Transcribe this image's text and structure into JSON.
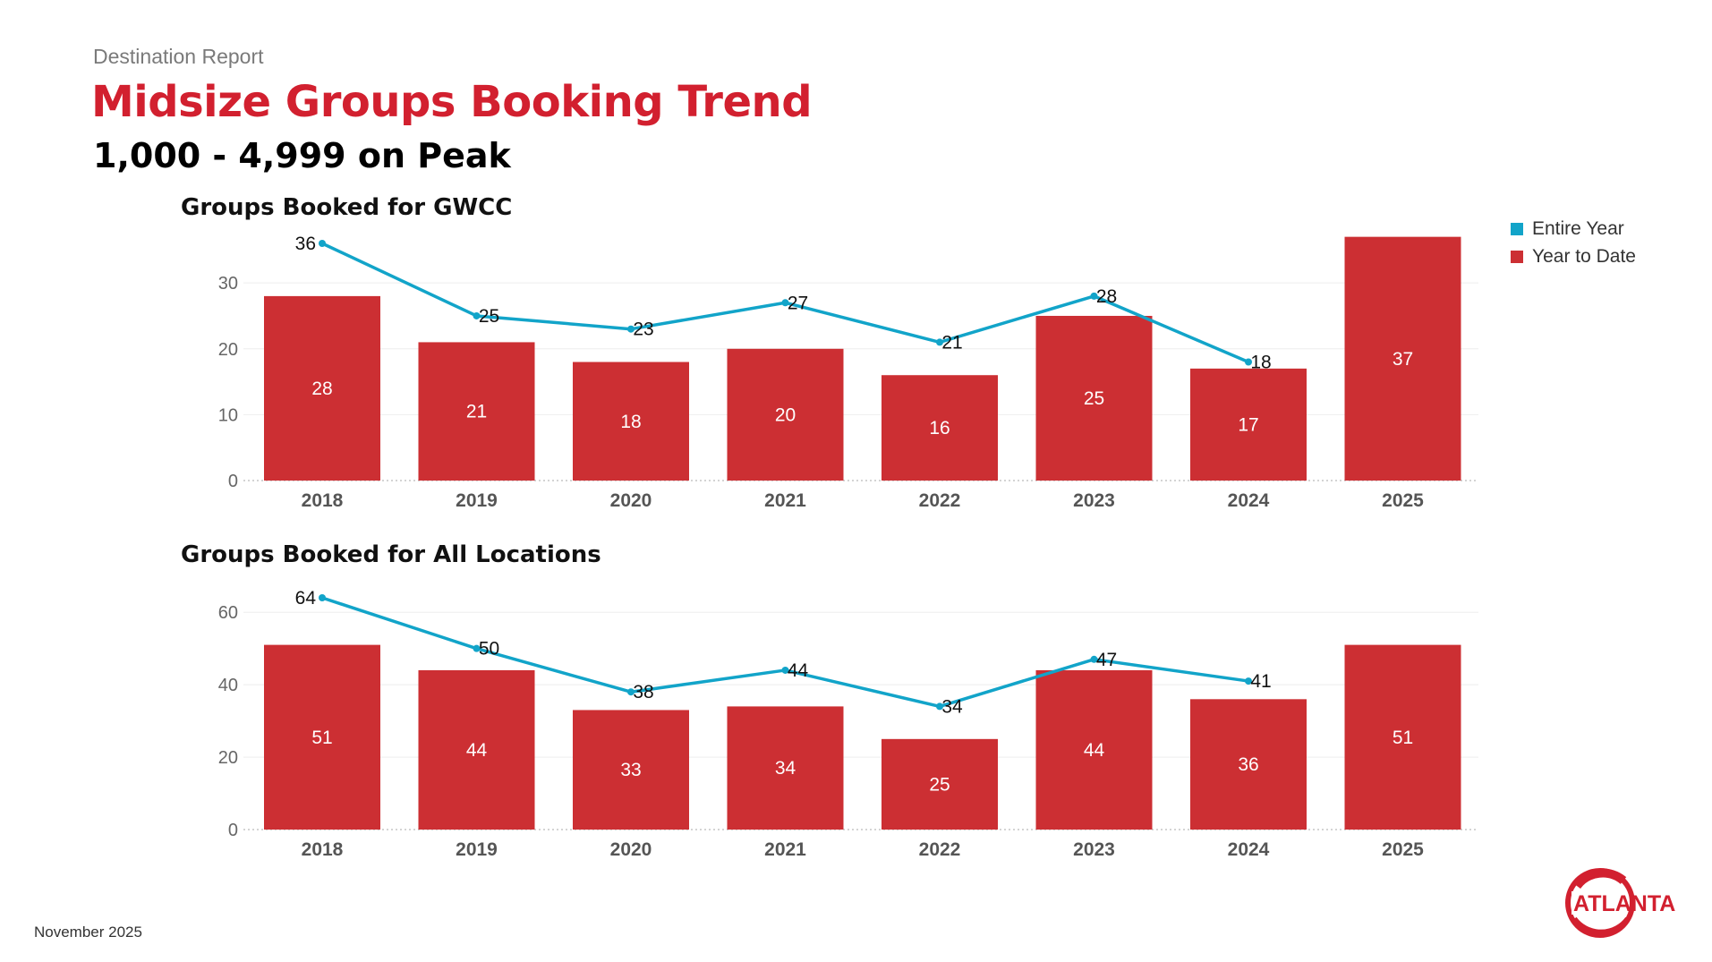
{
  "header": {
    "report_label": "Destination Report",
    "title": "Midsize Groups Booking Trend",
    "subtitle": "1,000 - 4,999 on Peak"
  },
  "legend": {
    "entire_year": "Entire Year",
    "year_to_date": "Year to Date"
  },
  "colors": {
    "bar": "#cc2f33",
    "line": "#12a4c9",
    "title_red": "#d2202f"
  },
  "footer": {
    "date": "November 2025"
  },
  "logo": {
    "text": "ATLANTA"
  },
  "chart_data": [
    {
      "type": "bar",
      "title": "Groups Booked for GWCC",
      "categories": [
        "2018",
        "2019",
        "2020",
        "2021",
        "2022",
        "2023",
        "2024",
        "2025"
      ],
      "ylim": [
        0,
        36
      ],
      "yticks": [
        0,
        10,
        20,
        30
      ],
      "series": [
        {
          "name": "Year to Date",
          "type": "bar",
          "values": [
            28,
            21,
            18,
            20,
            16,
            25,
            17,
            37
          ]
        },
        {
          "name": "Entire Year",
          "type": "line",
          "values": [
            36,
            25,
            23,
            27,
            21,
            28,
            18,
            null
          ]
        }
      ]
    },
    {
      "type": "bar",
      "title": "Groups Booked for All Locations",
      "categories": [
        "2018",
        "2019",
        "2020",
        "2021",
        "2022",
        "2023",
        "2024",
        "2025"
      ],
      "ylim": [
        0,
        64
      ],
      "yticks": [
        0,
        20,
        40,
        60
      ],
      "series": [
        {
          "name": "Year to Date",
          "type": "bar",
          "values": [
            51,
            44,
            33,
            34,
            25,
            44,
            36,
            51
          ]
        },
        {
          "name": "Entire Year",
          "type": "line",
          "values": [
            64,
            50,
            38,
            44,
            34,
            47,
            41,
            null
          ]
        }
      ]
    }
  ]
}
